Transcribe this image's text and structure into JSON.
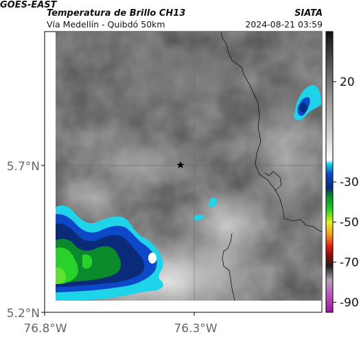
{
  "header": {
    "satellite": "GOES-EAST",
    "title": "Temperatura de Brillo CH13",
    "subtitle": "Vía Medellín - Quibdó 50km",
    "organization": "SIATA",
    "datetime": "2024-08-21 03:59"
  },
  "map": {
    "marker_icon": "star-icon",
    "lat_labels": [
      "5.7°N",
      "5.2°N"
    ],
    "lon_labels": [
      "76.8°W",
      "76.3°W"
    ]
  },
  "colorbar": {
    "ticks": [
      "20",
      "-30",
      "-50",
      "-70",
      "-90"
    ],
    "range": [
      -95,
      45
    ],
    "stops": [
      {
        "v": 45,
        "c": "#111111"
      },
      {
        "v": 30,
        "c": "#505050"
      },
      {
        "v": 15,
        "c": "#8a8a8a"
      },
      {
        "v": -5,
        "c": "#cfcfcf"
      },
      {
        "v": -19,
        "c": "#ffffff"
      },
      {
        "v": -21,
        "c": "#1fd4e8"
      },
      {
        "v": -26,
        "c": "#0c48c8"
      },
      {
        "v": -33,
        "c": "#0a2a7a"
      },
      {
        "v": -37,
        "c": "#0a8a2a"
      },
      {
        "v": -44,
        "c": "#28d22a"
      },
      {
        "v": -50,
        "c": "#e8f020"
      },
      {
        "v": -56,
        "c": "#f0a020"
      },
      {
        "v": -62,
        "c": "#e02010"
      },
      {
        "v": -67,
        "c": "#8a0a0a"
      },
      {
        "v": -72,
        "c": "#202020"
      },
      {
        "v": -79,
        "c": "#b0a0b0"
      },
      {
        "v": -85,
        "c": "#c060c0"
      },
      {
        "v": -95,
        "c": "#a010a0"
      }
    ]
  }
}
